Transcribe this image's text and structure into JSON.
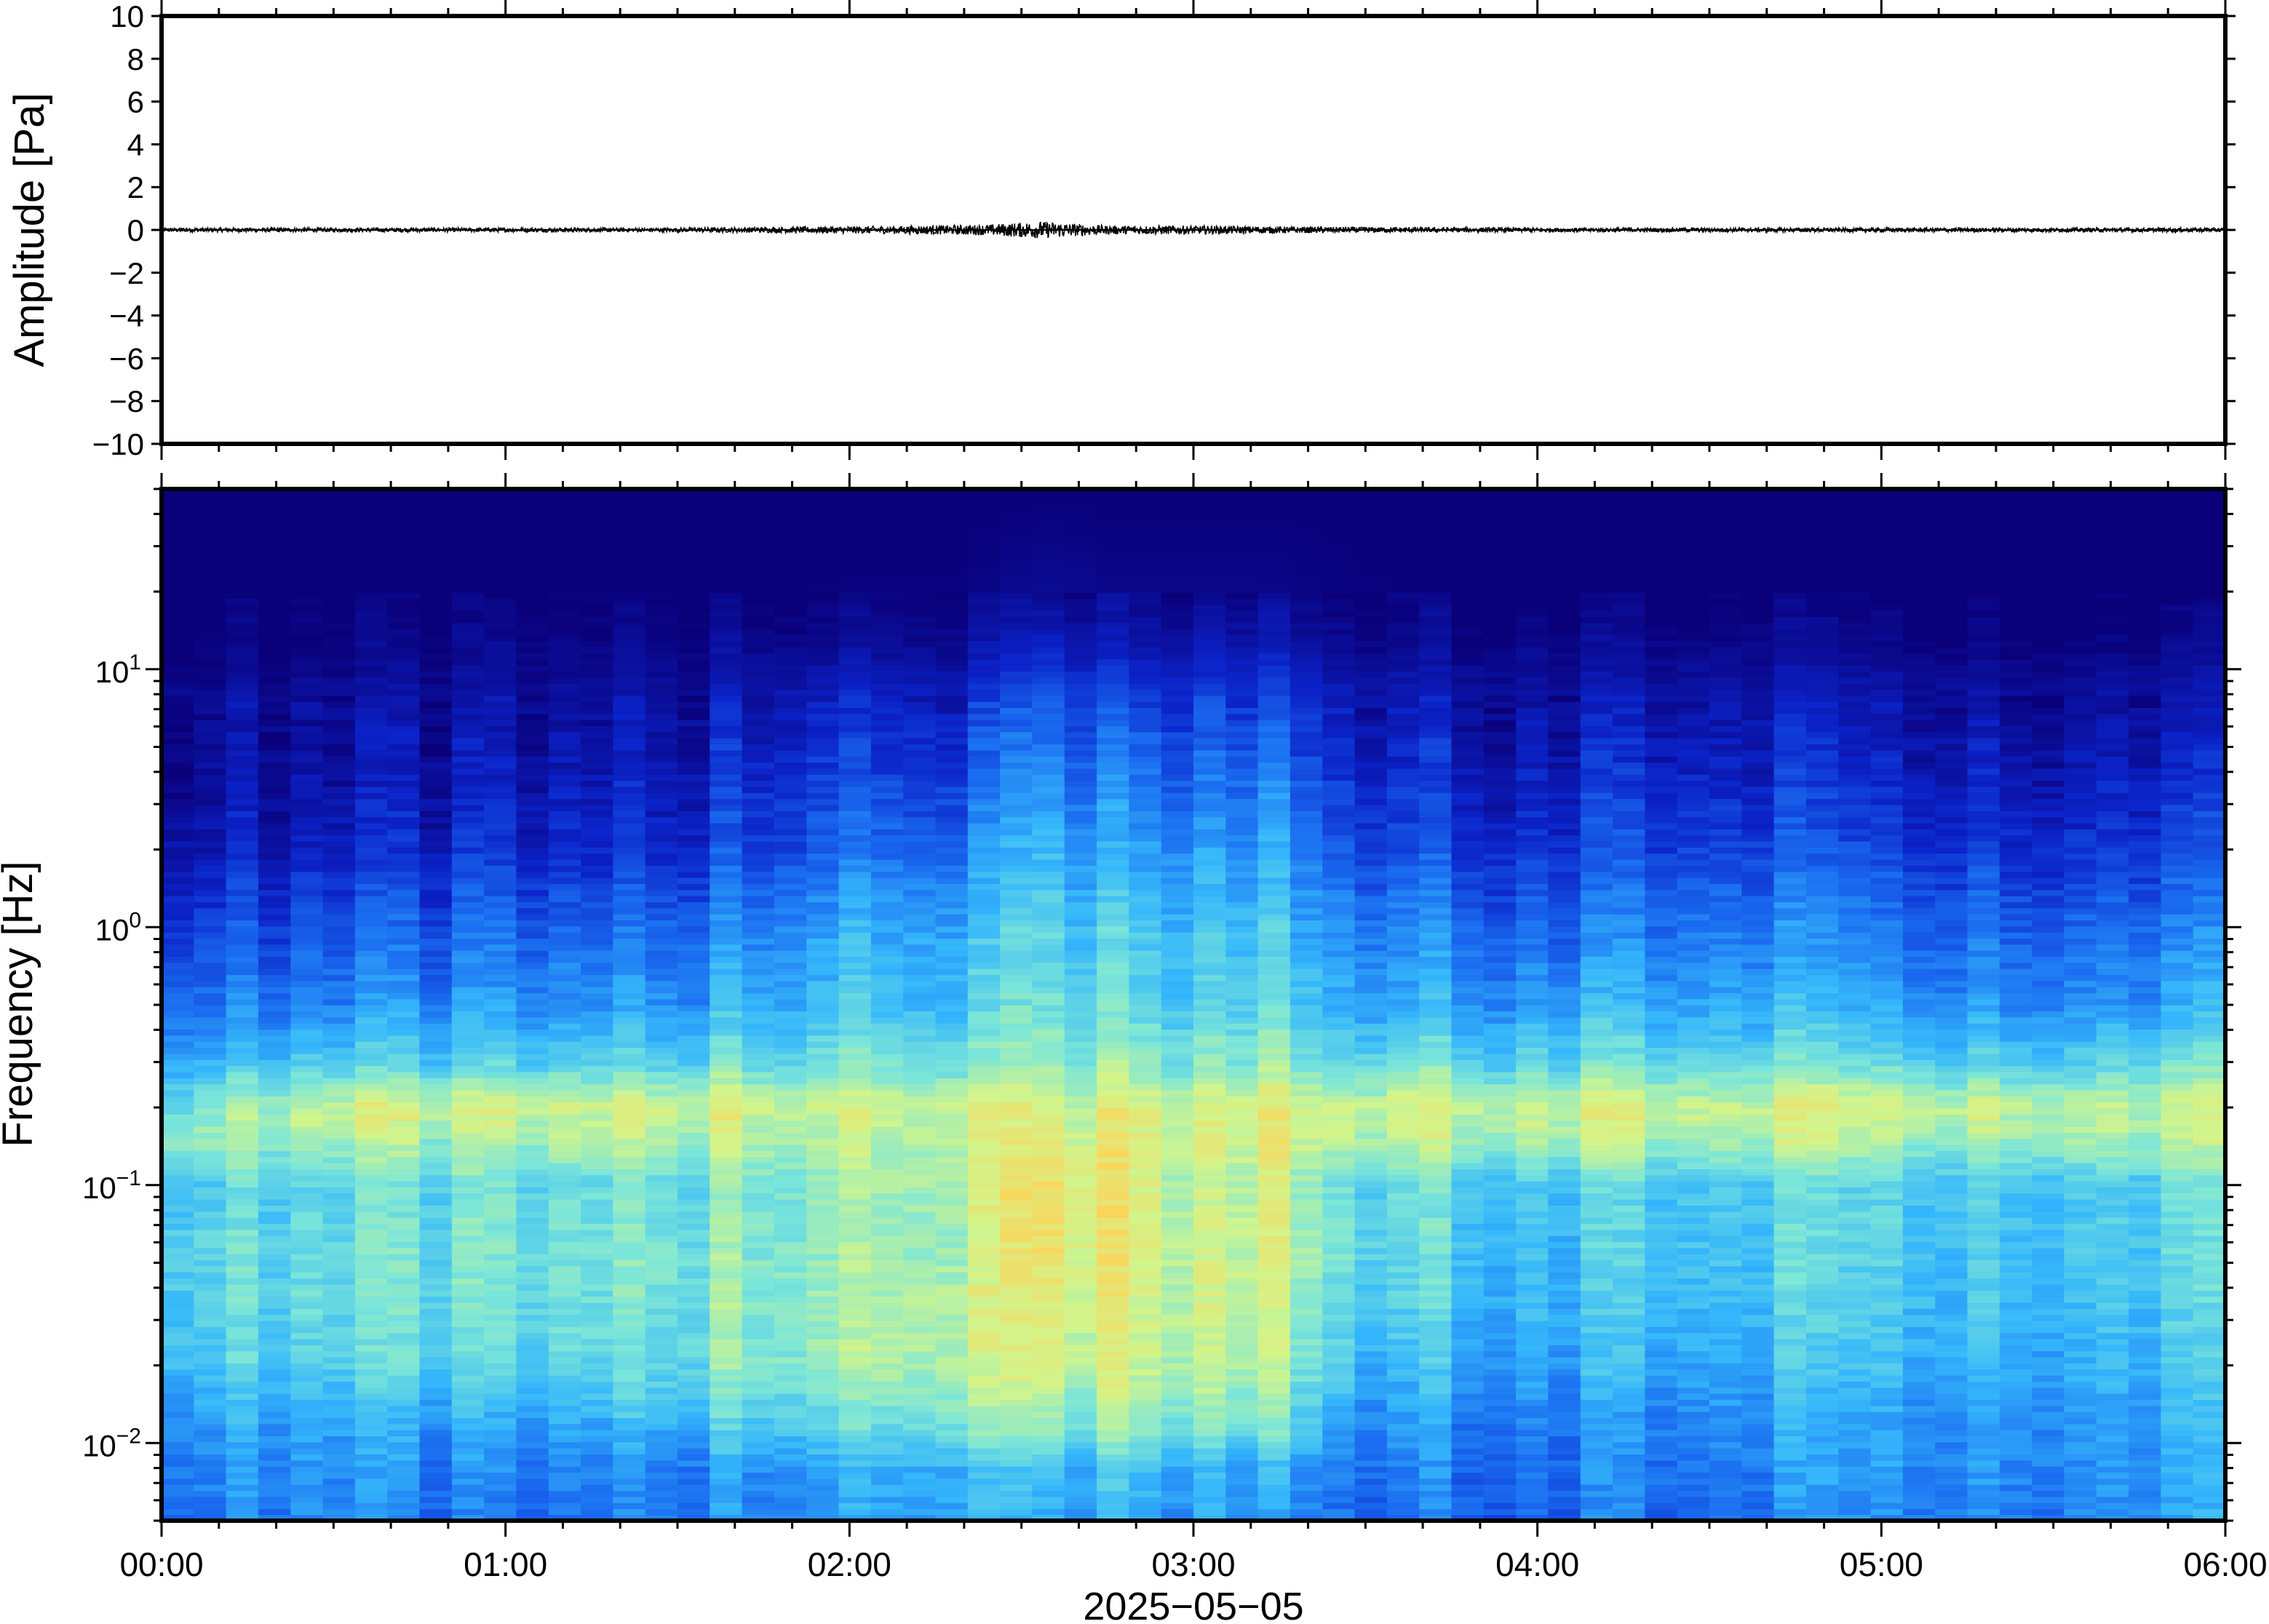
{
  "chart_data": [
    {
      "type": "line",
      "panel": "waveform",
      "ylabel": "Amplitude [Pa]",
      "ylim": [
        -10,
        10
      ],
      "yticks": [
        10,
        8,
        6,
        4,
        2,
        0,
        -2,
        -4,
        -6,
        -8,
        -10
      ],
      "ytick_labels": [
        "10",
        "8",
        "6",
        "4",
        "2",
        "0",
        "−2",
        "−4",
        "−6",
        "−8",
        "−10"
      ],
      "xlim_hours": [
        0,
        6
      ],
      "series": [
        {
          "color": "#000000",
          "t_hours": [
            0.0,
            0.5,
            1.0,
            1.5,
            1.9,
            2.2,
            2.4,
            2.5,
            2.55,
            2.6,
            2.65,
            2.75,
            3.0,
            3.3,
            4.0,
            5.0,
            6.0
          ],
          "envelope_pa": [
            0.1,
            0.1,
            0.1,
            0.1,
            0.15,
            0.2,
            0.25,
            0.35,
            0.4,
            0.35,
            0.3,
            0.2,
            0.2,
            0.15,
            0.1,
            0.1,
            0.1
          ]
        }
      ]
    },
    {
      "type": "heatmap",
      "panel": "spectrogram",
      "ylabel": "Frequency [Hz]",
      "yscale": "log",
      "ylim": [
        0.005,
        50
      ],
      "yticks": [
        0.01,
        0.1,
        1,
        10
      ],
      "ytick_labels": [
        {
          "base": "10",
          "exp": "−2"
        },
        {
          "base": "10",
          "exp": "−1"
        },
        {
          "base": "10",
          "exp": "0"
        },
        {
          "base": "10",
          "exp": "1"
        }
      ],
      "xlim_hours": [
        0,
        6
      ],
      "colormap": [
        "#0a0079",
        "#0b23c9",
        "#1a6cf0",
        "#35b7fb",
        "#7ce6d8",
        "#d1f58c",
        "#fbd55a",
        "#f77f3c"
      ],
      "band_freqs_hz": [
        0.005,
        0.008,
        0.012,
        0.02,
        0.035,
        0.06,
        0.1,
        0.15,
        0.2,
        0.3,
        0.5,
        1,
        2,
        4,
        8,
        12,
        20,
        50
      ],
      "time_hours": [
        0.0,
        0.5,
        1.0,
        1.5,
        2.0,
        2.3,
        2.5,
        2.6,
        2.75,
        3.0,
        3.2,
        3.5,
        4.0,
        4.5,
        5.0,
        5.5,
        6.0
      ],
      "level": [
        [
          0.33,
          0.37,
          0.4,
          0.5,
          0.53,
          0.55,
          0.5,
          0.66,
          0.58,
          0.45,
          0.32,
          0.22,
          0.13,
          0.08,
          0.06,
          0.02,
          0.0,
          0.0
        ],
        [
          0.35,
          0.38,
          0.42,
          0.52,
          0.55,
          0.55,
          0.53,
          0.66,
          0.73,
          0.5,
          0.35,
          0.25,
          0.14,
          0.09,
          0.06,
          0.02,
          0.0,
          0.0
        ],
        [
          0.28,
          0.33,
          0.38,
          0.5,
          0.55,
          0.56,
          0.54,
          0.65,
          0.72,
          0.5,
          0.36,
          0.27,
          0.15,
          0.1,
          0.06,
          0.03,
          0.0,
          0.0
        ],
        [
          0.32,
          0.35,
          0.45,
          0.55,
          0.58,
          0.58,
          0.56,
          0.67,
          0.73,
          0.52,
          0.38,
          0.29,
          0.17,
          0.12,
          0.07,
          0.03,
          0.0,
          0.0
        ],
        [
          0.38,
          0.42,
          0.55,
          0.65,
          0.66,
          0.63,
          0.64,
          0.68,
          0.72,
          0.58,
          0.48,
          0.42,
          0.3,
          0.22,
          0.14,
          0.06,
          0.01,
          0.0
        ],
        [
          0.4,
          0.44,
          0.58,
          0.67,
          0.68,
          0.64,
          0.66,
          0.68,
          0.72,
          0.55,
          0.45,
          0.4,
          0.28,
          0.2,
          0.12,
          0.05,
          0.01,
          0.0
        ],
        [
          0.4,
          0.45,
          0.62,
          0.72,
          0.75,
          0.78,
          0.8,
          0.74,
          0.73,
          0.62,
          0.55,
          0.5,
          0.42,
          0.33,
          0.22,
          0.12,
          0.04,
          0.0
        ],
        [
          0.42,
          0.48,
          0.64,
          0.74,
          0.77,
          0.82,
          0.83,
          0.76,
          0.73,
          0.63,
          0.56,
          0.52,
          0.44,
          0.35,
          0.24,
          0.14,
          0.05,
          0.0
        ],
        [
          0.4,
          0.46,
          0.6,
          0.7,
          0.72,
          0.76,
          0.78,
          0.74,
          0.73,
          0.6,
          0.52,
          0.47,
          0.38,
          0.3,
          0.2,
          0.1,
          0.03,
          0.0
        ],
        [
          0.38,
          0.44,
          0.6,
          0.68,
          0.7,
          0.7,
          0.67,
          0.72,
          0.72,
          0.58,
          0.5,
          0.45,
          0.37,
          0.28,
          0.18,
          0.09,
          0.03,
          0.0
        ],
        [
          0.34,
          0.4,
          0.58,
          0.66,
          0.7,
          0.72,
          0.68,
          0.74,
          0.73,
          0.6,
          0.52,
          0.46,
          0.38,
          0.29,
          0.19,
          0.1,
          0.03,
          0.0
        ],
        [
          0.3,
          0.33,
          0.38,
          0.45,
          0.52,
          0.55,
          0.54,
          0.68,
          0.73,
          0.55,
          0.42,
          0.34,
          0.24,
          0.16,
          0.1,
          0.05,
          0.01,
          0.0
        ],
        [
          0.28,
          0.3,
          0.32,
          0.4,
          0.44,
          0.46,
          0.48,
          0.66,
          0.72,
          0.52,
          0.38,
          0.28,
          0.18,
          0.12,
          0.07,
          0.03,
          0.0,
          0.0
        ],
        [
          0.3,
          0.33,
          0.36,
          0.42,
          0.46,
          0.48,
          0.5,
          0.66,
          0.72,
          0.54,
          0.42,
          0.33,
          0.23,
          0.15,
          0.09,
          0.04,
          0.0,
          0.0
        ],
        [
          0.34,
          0.37,
          0.38,
          0.44,
          0.48,
          0.5,
          0.5,
          0.66,
          0.73,
          0.52,
          0.38,
          0.3,
          0.2,
          0.13,
          0.08,
          0.03,
          0.0,
          0.0
        ],
        [
          0.36,
          0.38,
          0.4,
          0.44,
          0.48,
          0.5,
          0.5,
          0.66,
          0.72,
          0.52,
          0.38,
          0.3,
          0.2,
          0.13,
          0.08,
          0.03,
          0.0,
          0.0
        ],
        [
          0.38,
          0.4,
          0.42,
          0.46,
          0.5,
          0.52,
          0.52,
          0.67,
          0.7,
          0.55,
          0.4,
          0.32,
          0.21,
          0.14,
          0.08,
          0.03,
          0.0,
          0.0
        ]
      ]
    }
  ],
  "x_axis": {
    "tick_labels": [
      "00:00",
      "01:00",
      "02:00",
      "03:00",
      "04:00",
      "05:00",
      "06:00"
    ],
    "date_label": "2025−05−05"
  }
}
